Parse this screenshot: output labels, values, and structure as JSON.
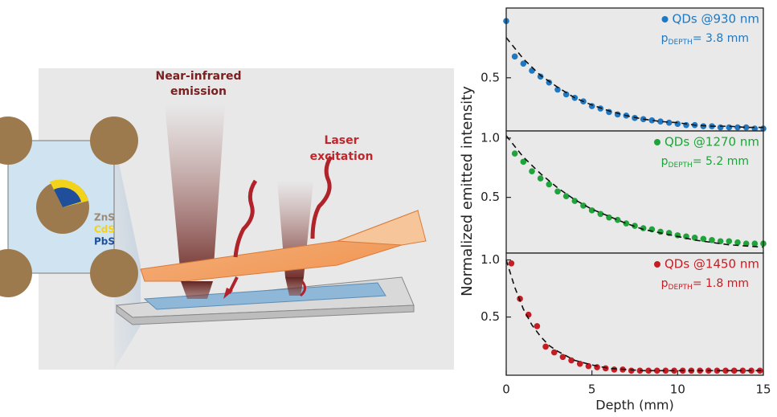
{
  "illustration": {
    "emission_label": [
      "Near-infrared",
      "emission"
    ],
    "laser_label": [
      "Laser",
      "excitation"
    ],
    "shells": [
      "ZnS",
      "CdS",
      "PbS"
    ]
  },
  "chart_data": [
    {
      "type": "scatter",
      "xlim": [
        0,
        15
      ],
      "ylim": [
        0.05,
        1.09
      ],
      "yticks": [
        0.5
      ],
      "series": [
        {
          "name": "QDs @930 nm",
          "color": "#1f78c1",
          "x": [
            0,
            0.5,
            1,
            1.5,
            2,
            2.5,
            3,
            3.5,
            4,
            4.5,
            5,
            5.5,
            6,
            6.5,
            7,
            7.5,
            8,
            8.5,
            9,
            9.5,
            10,
            10.5,
            11,
            11.5,
            12,
            12.5,
            13,
            13.5,
            14,
            14.5,
            15
          ],
          "values": [
            0.98,
            0.68,
            0.62,
            0.56,
            0.51,
            0.46,
            0.4,
            0.36,
            0.33,
            0.3,
            0.26,
            0.24,
            0.21,
            0.19,
            0.18,
            0.16,
            0.15,
            0.14,
            0.13,
            0.12,
            0.11,
            0.1,
            0.1,
            0.09,
            0.09,
            0.08,
            0.08,
            0.08,
            0.08,
            0.07,
            0.07
          ]
        },
        {
          "color": "#111111",
          "dash": true,
          "x": [
            0,
            1,
            2,
            3,
            4,
            5,
            6,
            7,
            8,
            9,
            10,
            11,
            12,
            13,
            14,
            15
          ],
          "values": [
            0.84,
            0.66,
            0.52,
            0.42,
            0.33,
            0.27,
            0.22,
            0.18,
            0.15,
            0.13,
            0.12,
            0.1,
            0.09,
            0.09,
            0.08,
            0.08
          ]
        }
      ],
      "annotation": {
        "symbol": "p",
        "subscript": "DEPTH",
        "text": "= 3.8 mm"
      }
    },
    {
      "type": "scatter",
      "xlim": [
        0,
        15
      ],
      "ylim": [
        0.03,
        1.06
      ],
      "yticks": [
        0.5,
        {
          "value": 1.0,
          "label": "1.0"
        }
      ],
      "ylabel": "Normalized emitted intensity",
      "series": [
        {
          "name": "QDs @1270 nm",
          "color": "#1fa33a",
          "x": [
            0.5,
            1,
            1.5,
            2,
            2.5,
            3,
            3.5,
            4,
            4.5,
            5,
            5.5,
            6,
            6.5,
            7,
            7.5,
            8,
            8.5,
            9,
            9.5,
            10,
            10.5,
            11,
            11.5,
            12,
            12.5,
            13,
            13.5,
            14,
            14.5,
            15
          ],
          "values": [
            0.87,
            0.8,
            0.72,
            0.66,
            0.61,
            0.55,
            0.51,
            0.47,
            0.43,
            0.39,
            0.36,
            0.33,
            0.31,
            0.28,
            0.26,
            0.24,
            0.23,
            0.21,
            0.2,
            0.18,
            0.17,
            0.16,
            0.15,
            0.14,
            0.13,
            0.13,
            0.12,
            0.11,
            0.11,
            0.11
          ]
        },
        {
          "color": "#111111",
          "dash": true,
          "x": [
            0,
            1,
            2,
            3,
            4,
            5,
            6,
            7,
            8,
            9,
            10,
            11,
            12,
            13,
            14,
            15
          ],
          "values": [
            1.02,
            0.84,
            0.7,
            0.58,
            0.48,
            0.4,
            0.34,
            0.28,
            0.23,
            0.2,
            0.17,
            0.14,
            0.12,
            0.1,
            0.09,
            0.08
          ]
        }
      ],
      "annotation": {
        "symbol": "p",
        "subscript": "DEPTH",
        "text": "= 5.2 mm"
      }
    },
    {
      "type": "scatter",
      "xlim": [
        0,
        15
      ],
      "ylim": [
        -0.01,
        1.06
      ],
      "yticks": [
        0.5,
        {
          "value": 1.0,
          "label": "1.0"
        }
      ],
      "xticks": [
        0,
        5,
        10,
        15
      ],
      "xlabel": "Depth (mm)",
      "series": [
        {
          "name": "QDs @1450 nm",
          "color": "#c41e24",
          "x": [
            0.3,
            0.8,
            1.3,
            1.8,
            2.3,
            2.8,
            3.3,
            3.8,
            4.3,
            4.8,
            5.3,
            5.8,
            6.3,
            6.8,
            7.3,
            7.8,
            8.3,
            8.8,
            9.3,
            9.8,
            10.3,
            10.8,
            11.3,
            11.8,
            12.3,
            12.8,
            13.3,
            13.8,
            14.3,
            14.8
          ],
          "values": [
            0.97,
            0.66,
            0.52,
            0.42,
            0.24,
            0.19,
            0.15,
            0.12,
            0.09,
            0.07,
            0.06,
            0.05,
            0.04,
            0.04,
            0.03,
            0.03,
            0.03,
            0.03,
            0.03,
            0.03,
            0.03,
            0.03,
            0.03,
            0.03,
            0.03,
            0.03,
            0.03,
            0.03,
            0.03,
            0.03
          ]
        },
        {
          "color": "#111111",
          "dash": true,
          "x": [
            0,
            0.5,
            1,
            1.5,
            2,
            2.5,
            3,
            4,
            5,
            6,
            8,
            10,
            12,
            15
          ],
          "values": [
            1.0,
            0.76,
            0.57,
            0.43,
            0.33,
            0.25,
            0.2,
            0.12,
            0.08,
            0.05,
            0.03,
            0.03,
            0.03,
            0.03
          ]
        }
      ],
      "annotation": {
        "symbol": "p",
        "subscript": "DEPTH",
        "text": "= 1.8 mm"
      }
    }
  ]
}
